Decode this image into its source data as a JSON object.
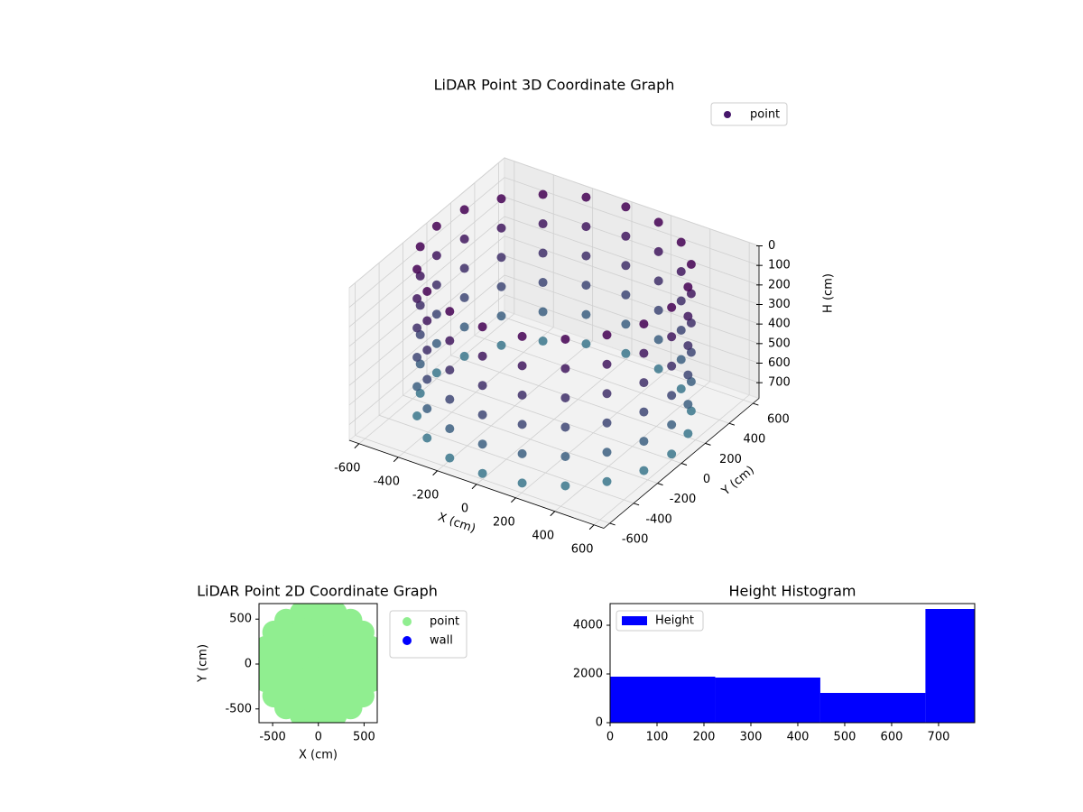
{
  "chart_data": [
    {
      "type": "scatter3d",
      "title": "LiDAR Point 3D Coordinate Graph",
      "xlabel": "X (cm)",
      "ylabel": "Y (cm)",
      "zlabel": "H (cm)",
      "xlim": [
        -650,
        650
      ],
      "ylim": [
        -650,
        650
      ],
      "zlim": [
        0,
        780
      ],
      "z_inverted": true,
      "xticks": [
        -600,
        -400,
        -200,
        0,
        200,
        400,
        600
      ],
      "yticks": [
        -600,
        -400,
        -200,
        0,
        200,
        400,
        600
      ],
      "zticks": [
        0,
        100,
        200,
        300,
        400,
        500,
        600,
        700
      ],
      "grid": true,
      "legend": "upper right",
      "series": [
        {
          "name": "point",
          "color": "#46166b",
          "colormap": [
            "#440154",
            "#3b7c8e"
          ],
          "x": [
            600,
            571,
            485,
            353,
            185,
            0,
            -185,
            -353,
            -485,
            -571,
            -600,
            -571,
            -485,
            -353,
            -185,
            0,
            185,
            353,
            485,
            571,
            600,
            571,
            485,
            353,
            185,
            0,
            -185,
            -353,
            -485,
            -571,
            -600,
            -571,
            -485,
            -353,
            -185,
            0,
            185,
            353,
            485,
            571,
            600,
            571,
            485,
            353,
            185,
            0,
            -185,
            -353,
            -485,
            -571,
            -600,
            -571,
            -485,
            -353,
            -185,
            0,
            185,
            353,
            485,
            571,
            600,
            571,
            485,
            353,
            185,
            0,
            -185,
            -353,
            -485,
            -571,
            -600,
            -571,
            -485,
            -353,
            -185,
            0,
            185,
            353,
            485,
            571,
            600,
            571,
            485,
            353,
            185,
            0,
            -185,
            -353,
            -485,
            -571,
            -600,
            -571,
            -485,
            -353,
            -185,
            0,
            185,
            353,
            485,
            571,
            600,
            571,
            485,
            353,
            185,
            0,
            -185,
            -353,
            -485,
            -571,
            -600,
            -571,
            -485,
            -353,
            -185,
            0,
            185,
            353,
            485,
            571
          ],
          "y": [
            0,
            185,
            353,
            485,
            571,
            600,
            571,
            485,
            353,
            185,
            0,
            -185,
            -353,
            -485,
            -571,
            -600,
            -571,
            -485,
            -353,
            -185,
            0,
            185,
            353,
            485,
            571,
            600,
            571,
            485,
            353,
            185,
            0,
            -185,
            -353,
            -485,
            -571,
            -600,
            -571,
            -485,
            -353,
            -185,
            0,
            185,
            353,
            485,
            571,
            600,
            571,
            485,
            353,
            185,
            0,
            -185,
            -353,
            -485,
            -571,
            -600,
            -571,
            -485,
            -353,
            -185,
            0,
            185,
            353,
            485,
            571,
            600,
            571,
            485,
            353,
            185,
            0,
            -185,
            -353,
            -485,
            -571,
            -600,
            -571,
            -485,
            -353,
            -185,
            0,
            185,
            353,
            485,
            571,
            600,
            571,
            485,
            353,
            185,
            0,
            -185,
            -353,
            -485,
            -571,
            -600,
            -571,
            -485,
            -353,
            -185,
            0,
            185,
            353,
            485,
            571,
            600,
            571,
            485,
            353,
            185,
            0,
            -185,
            -353,
            -485,
            -571,
            -600,
            -571,
            -485,
            -353,
            -185
          ],
          "z": [
            750,
            750,
            750,
            750,
            750,
            750,
            750,
            750,
            750,
            750,
            750,
            750,
            750,
            750,
            750,
            750,
            750,
            750,
            750,
            750,
            600,
            600,
            600,
            600,
            600,
            600,
            600,
            600,
            600,
            600,
            600,
            600,
            600,
            600,
            600,
            600,
            600,
            600,
            600,
            600,
            450,
            450,
            450,
            450,
            450,
            450,
            450,
            450,
            450,
            450,
            450,
            450,
            450,
            450,
            450,
            450,
            450,
            450,
            450,
            450,
            300,
            300,
            300,
            300,
            300,
            300,
            300,
            300,
            300,
            300,
            300,
            300,
            300,
            300,
            300,
            300,
            300,
            300,
            300,
            300,
            150,
            150,
            150,
            150,
            150,
            150,
            150,
            150,
            150,
            150,
            150,
            150,
            150,
            150,
            150,
            150,
            150,
            150,
            150,
            150,
            0,
            0,
            0,
            0,
            0,
            0,
            0,
            0,
            0,
            0,
            0,
            0,
            0,
            0,
            0,
            0,
            0,
            0,
            0,
            0
          ]
        }
      ]
    },
    {
      "type": "scatter",
      "title": "LiDAR Point 2D Coordinate Graph",
      "xlabel": "X (cm)",
      "ylabel": "Y (cm)",
      "xlim": [
        -649,
        644
      ],
      "ylim": [
        -653,
        673
      ],
      "xticks": [
        -500,
        0,
        500
      ],
      "yticks": [
        -500,
        0,
        500
      ],
      "legend": "outside right",
      "series": [
        {
          "name": "point",
          "color": "#90ee90",
          "x": [
            0,
            600,
            571,
            485,
            353,
            185,
            0,
            -185,
            -353,
            -485,
            -571,
            -600,
            -571,
            -485,
            -353,
            -185,
            0,
            185,
            353,
            485,
            571,
            400,
            380,
            324,
            235,
            124,
            0,
            -124,
            -235,
            -324,
            -380,
            -400,
            -380,
            -324,
            -235,
            -124,
            0,
            124,
            235,
            324,
            380,
            200,
            190,
            162,
            118,
            62,
            0,
            -62,
            -118,
            -162,
            -190,
            -200,
            -190,
            -162,
            -118,
            -62,
            0,
            62,
            118,
            162,
            190
          ],
          "y": [
            0,
            0,
            185,
            353,
            485,
            571,
            600,
            571,
            485,
            353,
            185,
            0,
            -185,
            -353,
            -485,
            -571,
            -600,
            -571,
            -485,
            -353,
            -185,
            0,
            124,
            235,
            324,
            380,
            400,
            380,
            324,
            235,
            124,
            0,
            -124,
            -235,
            -324,
            -380,
            -400,
            -380,
            -324,
            -235,
            -124,
            0,
            62,
            118,
            162,
            190,
            200,
            190,
            162,
            118,
            62,
            0,
            -62,
            -118,
            -162,
            -190,
            -200,
            -190,
            -162,
            -118,
            -62
          ]
        },
        {
          "name": "wall",
          "color": "#0000ff",
          "x": [],
          "y": []
        }
      ]
    },
    {
      "type": "histogram",
      "title": "Height Histogram",
      "bins": [
        0,
        224,
        448,
        672,
        777
      ],
      "xlim": [
        0,
        777
      ],
      "ylim": [
        0,
        4889
      ],
      "xticks": [
        0,
        100,
        200,
        300,
        400,
        500,
        600,
        700
      ],
      "yticks": [
        0,
        2000,
        4000
      ],
      "legend": "upper left",
      "series": [
        {
          "name": "Height",
          "color": "#0000ff",
          "values": [
            1889,
            1852,
            1222,
            4667
          ]
        }
      ]
    }
  ]
}
